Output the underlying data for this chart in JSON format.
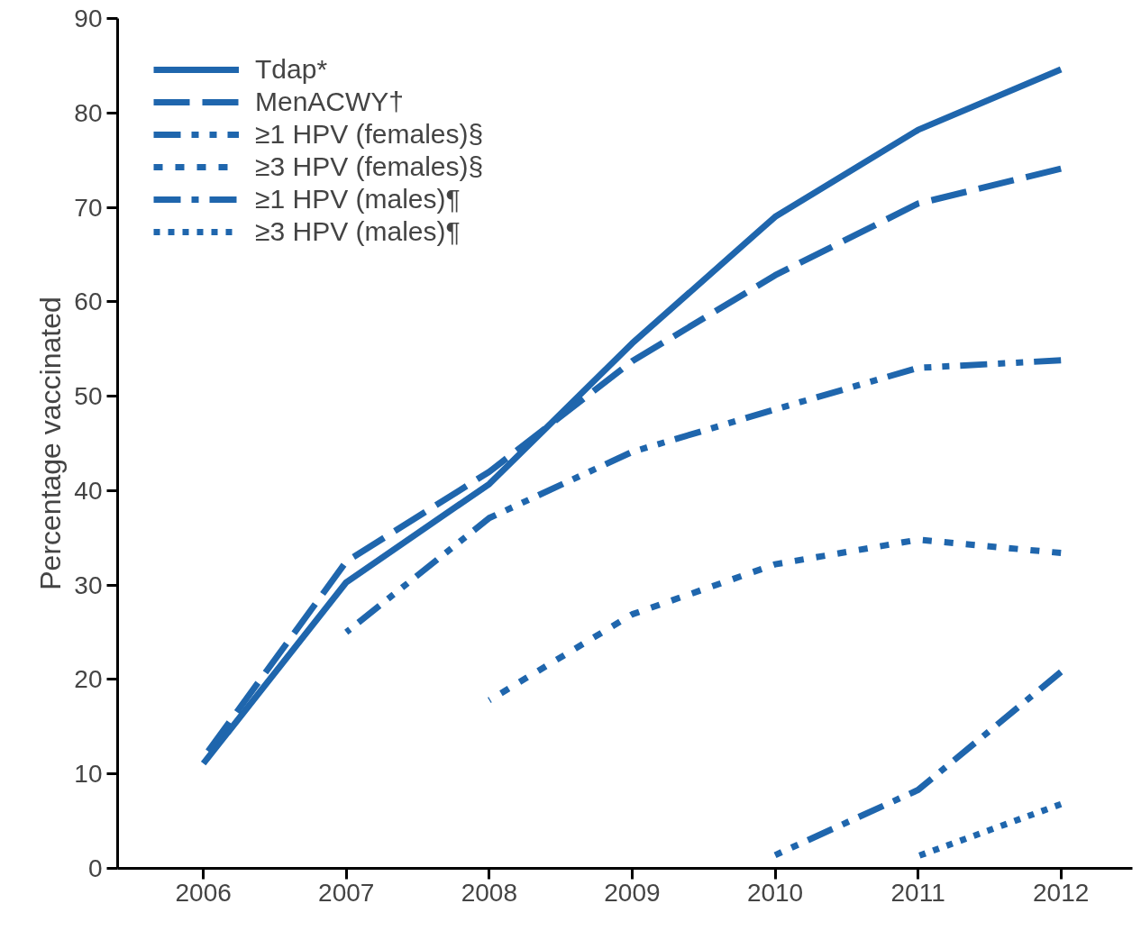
{
  "chart_data": {
    "type": "line",
    "ylabel": "Percentage vaccinated",
    "x": [
      2006,
      2007,
      2008,
      2009,
      2010,
      2011,
      2012
    ],
    "series": [
      {
        "name": "Tdap*",
        "color": "#1f66ad",
        "line_style": "solid",
        "values": [
          11.1,
          30.3,
          40.7,
          55.6,
          69.0,
          78.2,
          84.6
        ]
      },
      {
        "name": "MenACWY†",
        "color": "#1f66ad",
        "line_style": "dashed",
        "values": [
          11.7,
          32.5,
          42.0,
          53.7,
          62.8,
          70.4,
          74.1
        ]
      },
      {
        "name": "≥1 HPV (females)§",
        "color": "#1f66ad",
        "line_style": "dashdotdot",
        "values": [
          null,
          25.0,
          37.1,
          44.1,
          48.6,
          53.0,
          53.8
        ]
      },
      {
        "name": "≥3 HPV (females)§",
        "color": "#1f66ad",
        "line_style": "shortdash",
        "values": [
          null,
          null,
          17.8,
          26.9,
          32.2,
          34.8,
          33.4
        ]
      },
      {
        "name": "≥1 HPV (males)¶",
        "color": "#1f66ad",
        "line_style": "dashdot",
        "values": [
          null,
          null,
          null,
          null,
          1.4,
          8.3,
          20.8
        ]
      },
      {
        "name": "≥3 HPV (males)¶",
        "color": "#1f66ad",
        "line_style": "dotted",
        "values": [
          null,
          null,
          null,
          null,
          null,
          1.3,
          6.8
        ]
      }
    ],
    "xlim": [
      2005.4,
      2012.5
    ],
    "xticks": [
      2006,
      2007,
      2008,
      2009,
      2010,
      2011,
      2012
    ],
    "ylim": [
      0,
      90
    ],
    "yticks": [
      0,
      10,
      20,
      30,
      40,
      50,
      60,
      70,
      80,
      90
    ],
    "grid": false,
    "legend": "top left"
  }
}
